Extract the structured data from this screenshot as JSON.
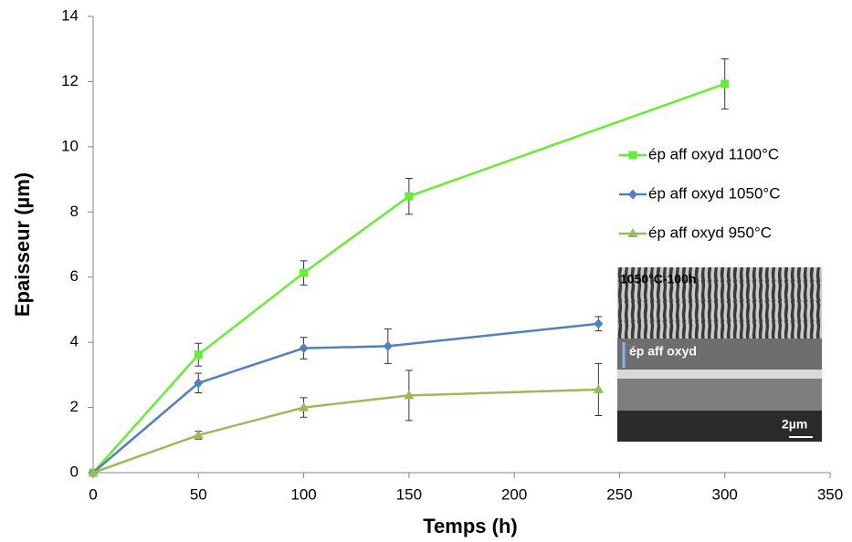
{
  "chart_data": {
    "type": "line",
    "xlabel": "Temps (h)",
    "ylabel": "Epaisseur (µm)",
    "xlim": [
      0,
      350
    ],
    "xticks": [
      0,
      50,
      100,
      150,
      200,
      250,
      300,
      350
    ],
    "ylim": [
      0,
      14
    ],
    "yticks": [
      0,
      2,
      4,
      6,
      8,
      10,
      12,
      14
    ],
    "grid": false,
    "legend_position": "right",
    "series": [
      {
        "name": "ép aff oxyd 1100°C",
        "color": "#66ee33",
        "marker": "square",
        "error_color": "#2b2b9a",
        "x": [
          0,
          50,
          100,
          150,
          300
        ],
        "values": [
          0,
          3.62,
          6.13,
          8.48,
          11.93
        ],
        "errors": [
          null,
          0.35,
          0.37,
          0.55,
          0.77
        ]
      },
      {
        "name": "ép aff oxyd 1050°C",
        "color": "#4f81bd",
        "marker": "diamond",
        "error_color": "#333333",
        "x": [
          0,
          50,
          100,
          140,
          240
        ],
        "values": [
          0,
          2.75,
          3.82,
          3.88,
          4.57
        ],
        "errors": [
          null,
          0.3,
          0.33,
          0.53,
          0.22
        ]
      },
      {
        "name": "ép aff oxyd 950°C",
        "color": "#9bbb59",
        "marker": "triangle",
        "error_color": "#333333",
        "x": [
          0,
          50,
          100,
          150,
          240
        ],
        "values": [
          0,
          1.15,
          2.0,
          2.37,
          2.55
        ],
        "errors": [
          null,
          0.12,
          0.3,
          0.77,
          0.8
        ]
      }
    ],
    "inset": {
      "label": "1050°C-100h",
      "annotation": "ép aff oxyd",
      "scale_bar": "2µm"
    }
  }
}
